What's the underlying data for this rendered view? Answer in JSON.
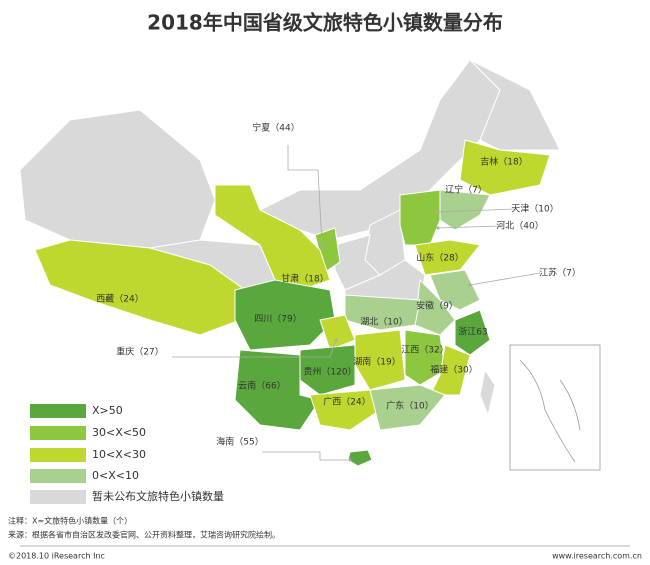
{
  "title": "2018年中国省级文旅特色小镇数量分布",
  "regions": [
    {
      "label": "宁夏（44）",
      "value": 44
    },
    {
      "label": "吉林（18）",
      "value": 18
    },
    {
      "label": "辽宁（7）",
      "value": 7
    },
    {
      "label": "天津（10）",
      "value": 10
    },
    {
      "label": "河北（40）",
      "value": 40
    },
    {
      "label": "山东（28）",
      "value": 28
    },
    {
      "label": "江苏（7）",
      "value": 7
    },
    {
      "label": "甘肃（18）",
      "value": 18
    },
    {
      "label": "西藏（24）",
      "value": 24
    },
    {
      "label": "四川（79）",
      "value": 79
    },
    {
      "label": "安徽（9）",
      "value": 9
    },
    {
      "label": "湖北（10）",
      "value": 10
    },
    {
      "label": "浙江63",
      "value": 63
    },
    {
      "label": "重庆（27）",
      "value": 27
    },
    {
      "label": "江西（32）",
      "value": 32
    },
    {
      "label": "湖南（19）",
      "value": 19
    },
    {
      "label": "福建（30）",
      "value": 30
    },
    {
      "label": "贵州（120）",
      "value": 120
    },
    {
      "label": "云南（66）",
      "value": 66
    },
    {
      "label": "广西（24）",
      "value": 24
    },
    {
      "label": "广东（10）",
      "value": 10
    },
    {
      "label": "海南（55）",
      "value": 55
    }
  ],
  "legend": [
    {
      "label": "X>50",
      "color": "#5aa73d",
      "min": 50
    },
    {
      "label": "30<X<50",
      "color": "#8dc63f",
      "min": 30
    },
    {
      "label": "10<X<30",
      "color": "#c0d730",
      "min": 10
    },
    {
      "label": "0<X<10",
      "color": "#a9d08e",
      "min": 0
    },
    {
      "label": "暂未公布文旅特色小镇数量",
      "color": "#d9d9d9"
    }
  ],
  "notes": [
    "注释：X=文旅特色小镇数量（个）",
    "来源：根据各省市自治区发改委官网、公开资料整理，艾瑞咨询研究院绘制。"
  ],
  "copyright": "©2018.10 iResearch Inc",
  "website": "www.iresearch.com.cn"
}
